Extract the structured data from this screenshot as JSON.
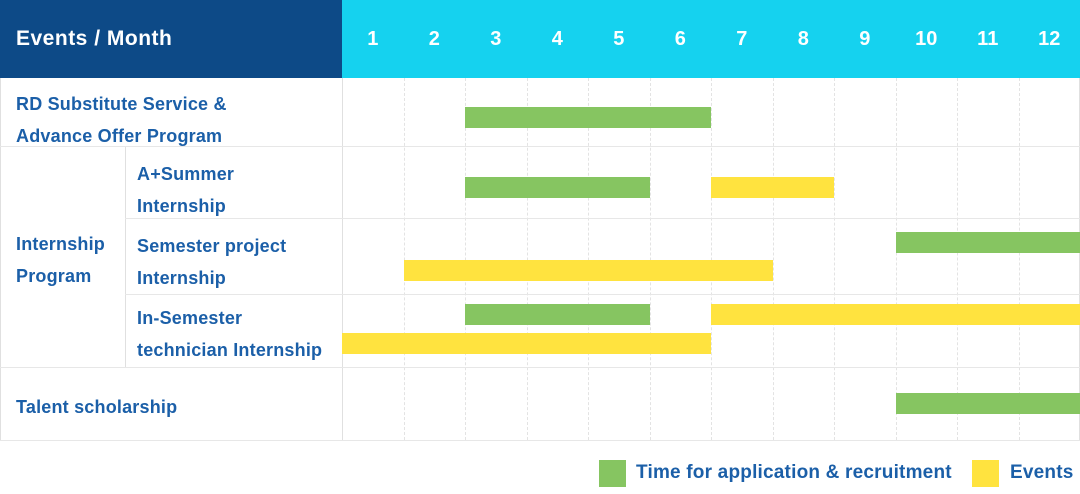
{
  "header": {
    "title": "Events / Month",
    "months": [
      "1",
      "2",
      "3",
      "4",
      "5",
      "6",
      "7",
      "8",
      "9",
      "10",
      "11",
      "12"
    ]
  },
  "labels": {
    "rd_line1": "RD Substitute Service &",
    "rd_line2": "Advance Offer Program",
    "group_line1": "Internship",
    "group_line2": "Program",
    "sub1_line1": "A+Summer",
    "sub1_line2": "Internship",
    "sub2_line1": "Semester project",
    "sub2_line2": "Internship",
    "sub3_line1": "In-Semester",
    "sub3_line2": "technician Internship",
    "talent": "Talent scholarship"
  },
  "legend": {
    "application": "Time for application & recruitment",
    "events": "Events"
  },
  "colors": {
    "header_navy": "#0d4a87",
    "header_cyan": "#15d2ef",
    "label_blue": "#1b5fa8",
    "bar_green": "#86c561",
    "bar_yellow": "#ffe33f"
  },
  "chart_data": {
    "type": "bar",
    "subtype": "gantt-schedule",
    "title": "Events / Month",
    "x": {
      "label": "Month",
      "categories": [
        1,
        2,
        3,
        4,
        5,
        6,
        7,
        8,
        9,
        10,
        11,
        12
      ],
      "range": [
        1,
        12
      ]
    },
    "grid": true,
    "legend_position": "bottom-right",
    "series_legend": [
      {
        "name": "Time for application & recruitment",
        "color": "#86c561"
      },
      {
        "name": "Events",
        "color": "#ffe33f"
      }
    ],
    "tasks": [
      {
        "label": "RD Substitute Service & Advance Offer Program",
        "group": "",
        "bars": [
          {
            "series": "Time for application & recruitment",
            "start_month": 3,
            "end_month": 6,
            "line": "center"
          }
        ]
      },
      {
        "label": "A+Summer Internship",
        "group": "Internship Program",
        "bars": [
          {
            "series": "Time for application & recruitment",
            "start_month": 3,
            "end_month": 5,
            "line": "center"
          },
          {
            "series": "Events",
            "start_month": 7,
            "end_month": 8,
            "line": "center"
          }
        ]
      },
      {
        "label": "Semester project Internship",
        "group": "Internship Program",
        "bars": [
          {
            "series": "Time for application & recruitment",
            "start_month": 10,
            "end_month": 12,
            "line": "upper"
          },
          {
            "series": "Events",
            "start_month": 2,
            "end_month": 7,
            "line": "lower"
          }
        ]
      },
      {
        "label": "In-Semester technician Internship",
        "group": "Internship Program",
        "bars": [
          {
            "series": "Time for application & recruitment",
            "start_month": 3,
            "end_month": 5,
            "line": "upper"
          },
          {
            "series": "Events",
            "start_month": 7,
            "end_month": 12,
            "line": "upper"
          },
          {
            "series": "Events",
            "start_month": 1,
            "end_month": 6,
            "line": "lower"
          }
        ]
      },
      {
        "label": "Talent scholarship",
        "group": "",
        "bars": [
          {
            "series": "Time for application & recruitment",
            "start_month": 10,
            "end_month": 12,
            "line": "center"
          }
        ]
      }
    ]
  }
}
